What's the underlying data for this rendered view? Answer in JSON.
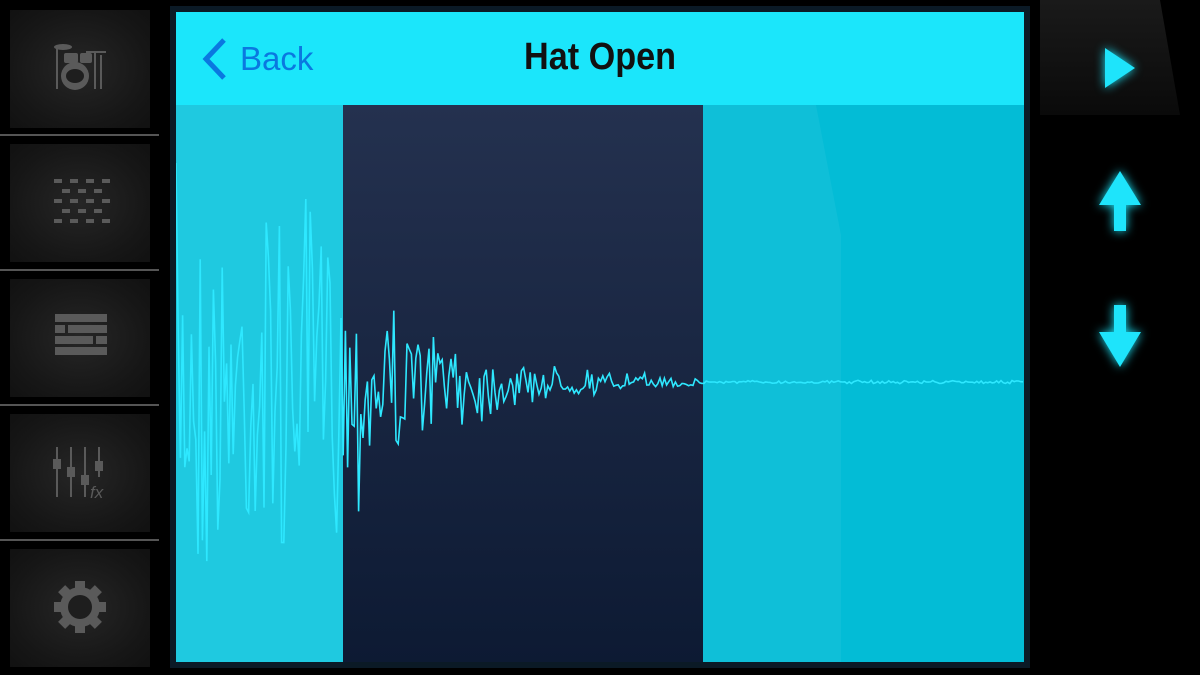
{
  "header": {
    "back_label": "Back",
    "title": "Hat Open"
  },
  "sidebar": {
    "items": [
      {
        "icon": "drum-kit-icon"
      },
      {
        "icon": "pattern-grid-icon"
      },
      {
        "icon": "song-arrange-icon"
      },
      {
        "icon": "mixer-fx-icon",
        "badge": "fx"
      },
      {
        "icon": "gear-icon"
      }
    ]
  },
  "controls": [
    {
      "icon": "play-icon"
    },
    {
      "icon": "arrow-up-icon"
    },
    {
      "icon": "arrow-down-icon"
    }
  ],
  "colors": {
    "accent": "#1be6fb",
    "selection": "#1a2a48",
    "waveform": "#2ee8ff",
    "back": "#0a78e0",
    "icons": "#555555"
  }
}
